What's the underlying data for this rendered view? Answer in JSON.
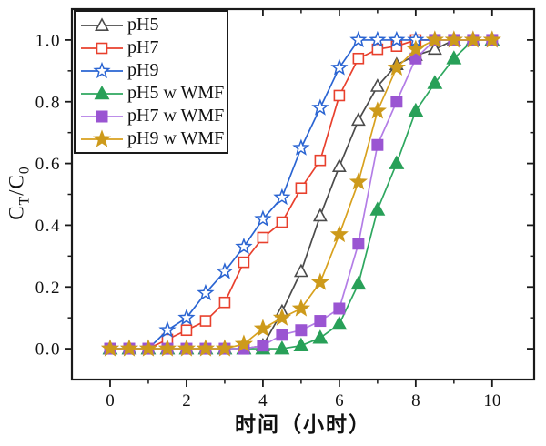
{
  "chart_data": {
    "type": "line",
    "title": "",
    "xlabel": "时间（小时）",
    "ylabel": "CT/C0",
    "ylabel_parts": {
      "base1": "C",
      "sub1": "T",
      "base2": "/C",
      "sub2": "0"
    },
    "xlim": [
      -1.0,
      11.1
    ],
    "ylim": [
      -0.1,
      1.1
    ],
    "grid": false,
    "legend_position": "upper-left",
    "axis_color": "#1a1a1a",
    "x_major_ticks": [
      0,
      2,
      4,
      6,
      8,
      10
    ],
    "x_major_tick_labels": [
      "0",
      "2",
      "4",
      "6",
      "8",
      "10"
    ],
    "x_minor_ticks": [
      1,
      3,
      5,
      7,
      9
    ],
    "y_major_ticks": [
      0.0,
      0.2,
      0.4,
      0.6,
      0.8,
      1.0
    ],
    "y_major_tick_labels": [
      "0.0",
      "0.2",
      "0.4",
      "0.6",
      "0.8",
      "1.0"
    ],
    "y_minor_ticks": [
      0.1,
      0.3,
      0.5,
      0.7,
      0.9
    ],
    "x": [
      0,
      0.5,
      1,
      1.5,
      2,
      2.5,
      3,
      3.5,
      4,
      4.5,
      5,
      5.5,
      6,
      6.5,
      7,
      7.5,
      8,
      8.5,
      9,
      9.5,
      10
    ],
    "series": [
      {
        "name": "pH5",
        "marker": "triangle-open",
        "line_color": "#4b4b4b",
        "marker_color": "#4b4b4b",
        "values": [
          0,
          0,
          0,
          0,
          0,
          0,
          0,
          0,
          0.01,
          0.12,
          0.25,
          0.43,
          0.59,
          0.74,
          0.85,
          0.92,
          0.95,
          0.97,
          1,
          1,
          1
        ]
      },
      {
        "name": "pH7",
        "marker": "square-open",
        "line_color": "#e8402d",
        "marker_color": "#e8402d",
        "values": [
          0,
          0,
          0,
          0.03,
          0.06,
          0.09,
          0.15,
          0.28,
          0.36,
          0.41,
          0.52,
          0.61,
          0.82,
          0.94,
          0.97,
          0.98,
          1,
          1,
          1,
          1,
          1
        ]
      },
      {
        "name": "pH9",
        "marker": "star-open",
        "line_color": "#2a64d2",
        "marker_color": "#2a64d2",
        "values": [
          0,
          0,
          0,
          0.06,
          0.1,
          0.18,
          0.25,
          0.33,
          0.42,
          0.49,
          0.65,
          0.78,
          0.91,
          1,
          1,
          1,
          1,
          1,
          1,
          1,
          1
        ]
      },
      {
        "name": "pH5 w WMF",
        "marker": "triangle-filled",
        "line_color": "#2ea75f",
        "marker_color": "#28a058",
        "values": [
          0,
          0,
          0,
          0,
          0,
          0,
          0,
          0,
          0,
          0,
          0.01,
          0.035,
          0.08,
          0.21,
          0.45,
          0.6,
          0.77,
          0.86,
          0.94,
          1,
          1
        ]
      },
      {
        "name": "pH7 w WMF",
        "marker": "square-filled",
        "line_color": "#b37de6",
        "marker_color": "#9a55d2",
        "values": [
          0,
          0,
          0,
          0,
          0,
          0,
          0,
          0,
          0.01,
          0.045,
          0.06,
          0.09,
          0.13,
          0.34,
          0.66,
          0.8,
          0.94,
          1,
          1,
          1,
          1
        ]
      },
      {
        "name": "pH9 w WMF",
        "marker": "star-filled",
        "line_color": "#d8a11e",
        "marker_color": "#cd9a1b",
        "values": [
          0,
          0,
          0,
          0,
          0,
          0,
          0,
          0.015,
          0.065,
          0.1,
          0.13,
          0.215,
          0.37,
          0.54,
          0.77,
          0.91,
          0.97,
          1,
          1,
          1,
          1
        ]
      }
    ]
  }
}
